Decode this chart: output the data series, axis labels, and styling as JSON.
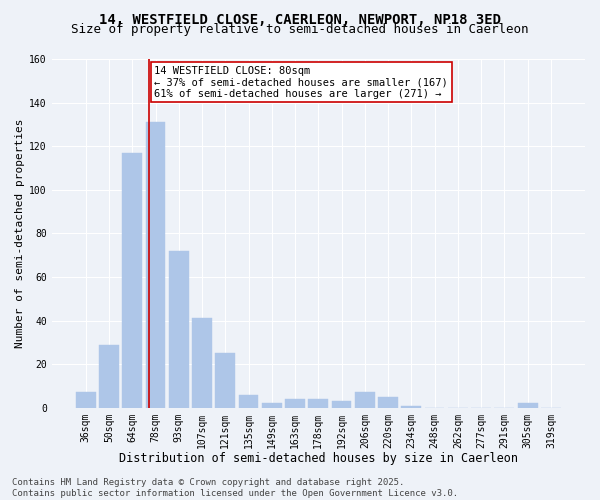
{
  "title1": "14, WESTFIELD CLOSE, CAERLEON, NEWPORT, NP18 3ED",
  "title2": "Size of property relative to semi-detached houses in Caerleon",
  "xlabel": "Distribution of semi-detached houses by size in Caerleon",
  "ylabel": "Number of semi-detached properties",
  "categories": [
    "36sqm",
    "50sqm",
    "64sqm",
    "78sqm",
    "93sqm",
    "107sqm",
    "121sqm",
    "135sqm",
    "149sqm",
    "163sqm",
    "178sqm",
    "192sqm",
    "206sqm",
    "220sqm",
    "234sqm",
    "248sqm",
    "262sqm",
    "277sqm",
    "291sqm",
    "305sqm",
    "319sqm"
  ],
  "values": [
    7,
    29,
    117,
    131,
    72,
    41,
    25,
    6,
    2,
    4,
    4,
    3,
    7,
    5,
    1,
    0,
    0,
    0,
    0,
    2,
    0
  ],
  "bar_color": "#aec6e8",
  "bar_edge_color": "#aec6e8",
  "property_bin_index": 3,
  "marker_line_color": "#cc0000",
  "annotation_title": "14 WESTFIELD CLOSE: 80sqm",
  "annotation_line1": "← 37% of semi-detached houses are smaller (167)",
  "annotation_line2": "61% of semi-detached houses are larger (271) →",
  "annotation_box_color": "#ffffff",
  "annotation_box_edge_color": "#cc0000",
  "ylim": [
    0,
    160
  ],
  "yticks": [
    0,
    20,
    40,
    60,
    80,
    100,
    120,
    140,
    160
  ],
  "footer1": "Contains HM Land Registry data © Crown copyright and database right 2025.",
  "footer2": "Contains public sector information licensed under the Open Government Licence v3.0.",
  "bg_color": "#eef2f8",
  "plot_bg_color": "#eef2f8",
  "grid_color": "#ffffff",
  "title1_fontsize": 10,
  "title2_fontsize": 9,
  "xlabel_fontsize": 8.5,
  "ylabel_fontsize": 8,
  "tick_fontsize": 7,
  "annotation_fontsize": 7.5,
  "footer_fontsize": 6.5
}
